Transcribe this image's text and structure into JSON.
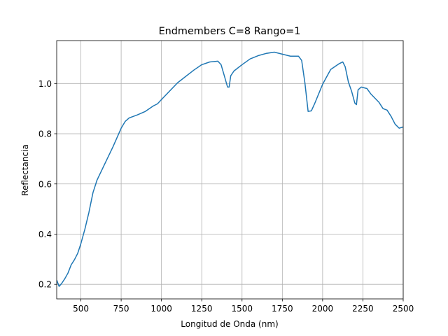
{
  "chart_data": {
    "type": "line",
    "title": "Endmembers C=8 Rango=1",
    "x_label": "Longitud de Onda (nm)",
    "y_label": "Reflectancia",
    "x": [
      350,
      365,
      380,
      400,
      420,
      440,
      460,
      480,
      500,
      525,
      550,
      575,
      600,
      650,
      700,
      750,
      775,
      800,
      850,
      900,
      950,
      975,
      1000,
      1100,
      1200,
      1250,
      1300,
      1350,
      1370,
      1390,
      1410,
      1420,
      1430,
      1450,
      1500,
      1550,
      1600,
      1650,
      1700,
      1750,
      1800,
      1850,
      1870,
      1890,
      1910,
      1930,
      1950,
      2000,
      2050,
      2100,
      2125,
      2140,
      2160,
      2180,
      2200,
      2210,
      2220,
      2240,
      2275,
      2300,
      2350,
      2375,
      2400,
      2425,
      2450,
      2475,
      2500
    ],
    "values": [
      0.217,
      0.192,
      0.203,
      0.222,
      0.245,
      0.278,
      0.298,
      0.323,
      0.362,
      0.42,
      0.487,
      0.565,
      0.615,
      0.682,
      0.749,
      0.822,
      0.849,
      0.863,
      0.875,
      0.889,
      0.911,
      0.919,
      0.936,
      1.003,
      1.053,
      1.075,
      1.086,
      1.089,
      1.075,
      1.031,
      0.986,
      0.986,
      1.031,
      1.05,
      1.075,
      1.098,
      1.111,
      1.12,
      1.125,
      1.117,
      1.109,
      1.109,
      1.092,
      1.003,
      0.889,
      0.891,
      0.919,
      0.997,
      1.056,
      1.078,
      1.086,
      1.067,
      1.006,
      0.969,
      0.922,
      0.916,
      0.975,
      0.986,
      0.98,
      0.958,
      0.925,
      0.9,
      0.894,
      0.869,
      0.838,
      0.822,
      0.827
    ],
    "color": "#1f77b4",
    "xlim": [
      350,
      2500
    ],
    "xticks": [
      500,
      750,
      1000,
      1250,
      1500,
      1750,
      2000,
      2250,
      2500
    ],
    "ylim": [
      0.142,
      1.171
    ],
    "yticks": [
      0.2,
      0.4,
      0.6,
      0.8,
      {
        "value": 1.0,
        "label": "1.0"
      }
    ],
    "grid": true
  }
}
